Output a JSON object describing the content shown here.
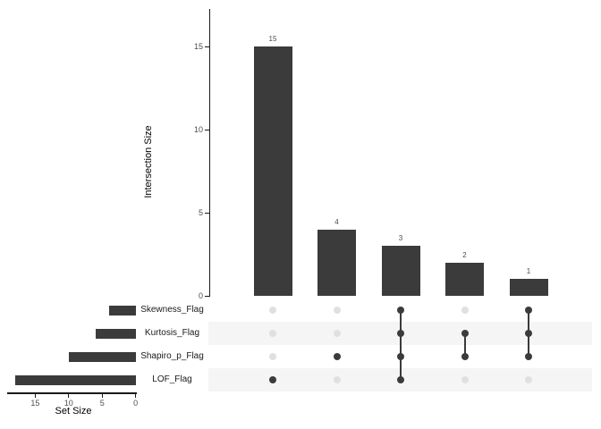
{
  "chart_data": {
    "type": "upset",
    "title": "",
    "intersection_axis": {
      "label": "Intersection Size",
      "ticks": [
        0,
        5,
        10,
        15
      ],
      "range": [
        0,
        17.3
      ]
    },
    "set_axis": {
      "label": "Set Size",
      "ticks": [
        15,
        10,
        5,
        0
      ],
      "range": [
        0,
        19.3
      ]
    },
    "sets": [
      {
        "name": "Skewness_Flag",
        "size": 4
      },
      {
        "name": "Kurtosis_Flag",
        "size": 6
      },
      {
        "name": "Shapiro_p_Flag",
        "size": 10
      },
      {
        "name": "LOF_Flag",
        "size": 18
      }
    ],
    "intersections": [
      {
        "size": 15,
        "members": [
          "LOF_Flag"
        ]
      },
      {
        "size": 4,
        "members": [
          "Shapiro_p_Flag"
        ]
      },
      {
        "size": 3,
        "members": [
          "Skewness_Flag",
          "Kurtosis_Flag",
          "Shapiro_p_Flag",
          "LOF_Flag"
        ]
      },
      {
        "size": 2,
        "members": [
          "Kurtosis_Flag",
          "Shapiro_p_Flag"
        ]
      },
      {
        "size": 1,
        "members": [
          "Skewness_Flag",
          "Kurtosis_Flag",
          "Shapiro_p_Flag"
        ]
      }
    ],
    "legend": "none",
    "grid": "off",
    "colors": {
      "bar": "#3b3b3b",
      "active_dot": "#3b3b3b",
      "inactive_dot": "#e0e0e0",
      "stripe": "#f5f5f5",
      "axis_line": "#1a1a1a",
      "tick_text": "#4d4d4d",
      "count_text": "#4a4a4a",
      "title_text": "#000000"
    }
  }
}
